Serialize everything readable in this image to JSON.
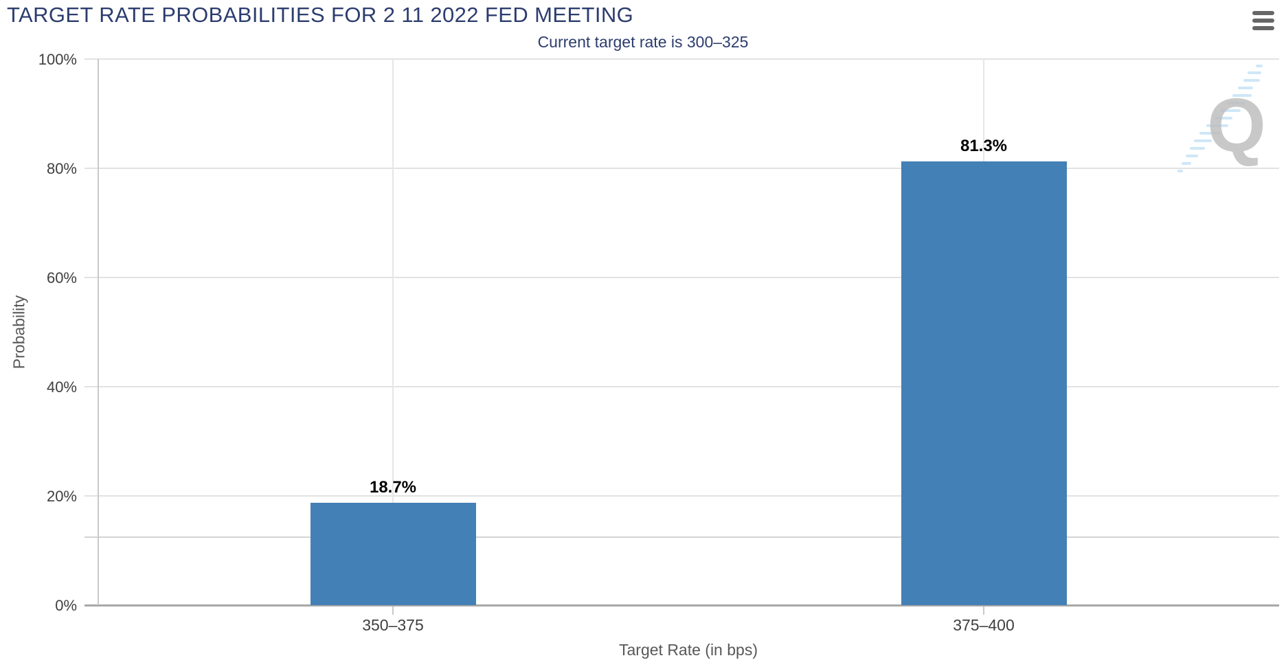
{
  "icons": {
    "menu": "hamburger-menu-icon",
    "watermark": "quikstrike-q-watermark"
  },
  "menu": {
    "aria_label": "Chart context menu"
  },
  "chart_data": {
    "type": "bar",
    "title": "TARGET RATE PROBABILITIES FOR 2 11 2022 FED MEETING",
    "subtitle": "Current target rate is 300–325",
    "categories": [
      "350–375",
      "375–400"
    ],
    "series": [
      {
        "name": "Probability",
        "values": [
          18.7,
          81.3
        ]
      }
    ],
    "value_labels": [
      "18.7%",
      "81.3%"
    ],
    "xlabel": "Target Rate (in bps)",
    "ylabel": "Probability",
    "ylim": [
      0,
      100
    ],
    "yticks": [
      {
        "value": 0,
        "label": "0%"
      },
      {
        "value": 20,
        "label": "20%"
      },
      {
        "value": 40,
        "label": "40%"
      },
      {
        "value": 60,
        "label": "60%"
      },
      {
        "value": 80,
        "label": "80%"
      },
      {
        "value": 100,
        "label": "100%"
      }
    ],
    "extra_gridline_value": 12.45,
    "grid": true,
    "legend_position": "none",
    "bar_color": "#4380b5",
    "watermark_letter": "Q"
  },
  "colors": {
    "title": "#2c3c6e",
    "bar": "#4380b5",
    "gridline": "#e2e2e2",
    "axis_line": "#c9c9c9",
    "baseline": "#a8a8a8",
    "tick_label": "#3f3f3f",
    "axis_title": "#585858",
    "menu_icon": "#666666",
    "watermark_q": "#bfbfbf",
    "watermark_dash": "#a8d4f2"
  }
}
